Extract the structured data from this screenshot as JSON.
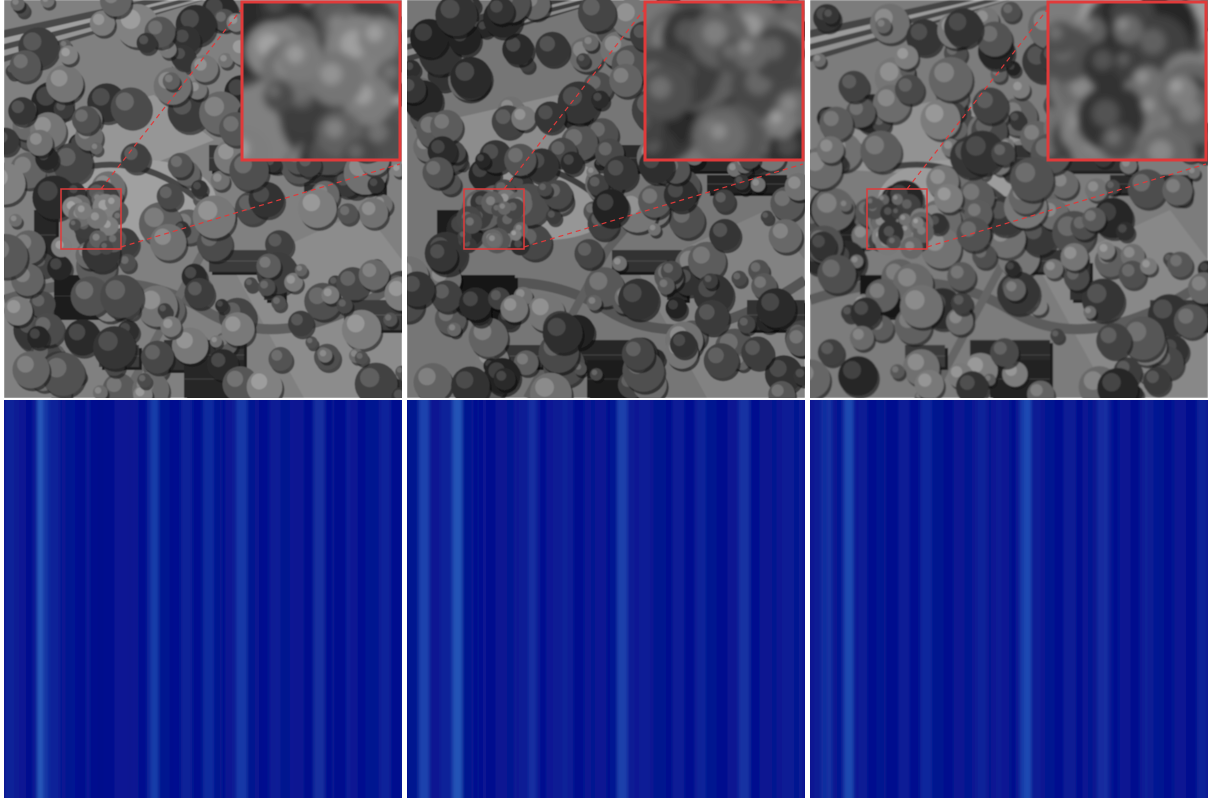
{
  "figure": {
    "panels": [
      {
        "id": "a",
        "noise_profile": [
          0.18,
          0.1,
          0.05,
          0.62,
          0.2,
          0.08,
          0.06,
          0.04,
          0.03,
          0.05,
          0.12,
          0.09,
          0.06,
          0.41,
          0.07,
          0.05,
          0.18,
          0.04,
          0.26,
          0.06,
          0.09,
          0.38,
          0.08,
          0.05,
          0.16,
          0.07,
          0.1,
          0.04,
          0.28,
          0.06,
          0.05,
          0.12,
          0.06,
          0.08,
          0.22,
          0.05
        ]
      },
      {
        "id": "b",
        "noise_profile": [
          0.08,
          0.46,
          0.1,
          0.2,
          0.58,
          0.07,
          0.06,
          0.05,
          0.1,
          0.08,
          0.14,
          0.3,
          0.06,
          0.09,
          0.18,
          0.05,
          0.08,
          0.12,
          0.06,
          0.44,
          0.1,
          0.16,
          0.07,
          0.05,
          0.14,
          0.06,
          0.22,
          0.08,
          0.05,
          0.11,
          0.32,
          0.06,
          0.09,
          0.05,
          0.15,
          0.07
        ]
      },
      {
        "id": "c",
        "noise_profile": [
          0.14,
          0.32,
          0.08,
          0.5,
          0.12,
          0.06,
          0.08,
          0.05,
          0.16,
          0.06,
          0.24,
          0.07,
          0.05,
          0.1,
          0.08,
          0.2,
          0.06,
          0.12,
          0.05,
          0.52,
          0.1,
          0.08,
          0.06,
          0.14,
          0.05,
          0.07,
          0.3,
          0.06,
          0.1,
          0.05,
          0.18,
          0.08,
          0.06,
          0.12,
          0.05,
          0.2
        ]
      }
    ],
    "colors": {
      "highlight_box": "#e03a3a",
      "map_low": "#020a8a",
      "map_high": "#3a86d6"
    }
  }
}
